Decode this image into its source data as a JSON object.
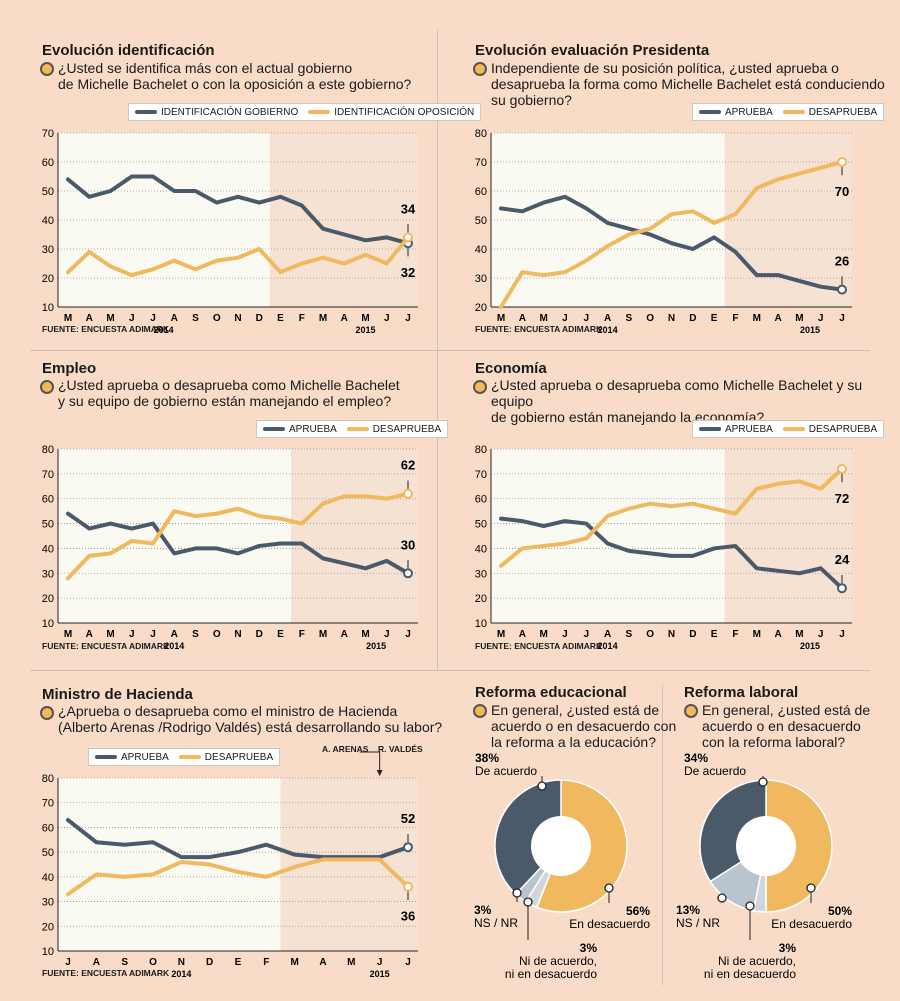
{
  "colors": {
    "background": "#f8dcc8",
    "aprueba": "#4a5a6a",
    "desaprueba": "#f0b960",
    "ns": "#b9c4ce",
    "ni": "#cfd6dc",
    "plot_white": "#fafaf2",
    "plot_shade": "#f6e2d3"
  },
  "source_label": "FUENTE: ENCUESTA ADIMARK",
  "years": {
    "y2014": "2014",
    "y2015": "2015"
  },
  "panels": {
    "identificacion": {
      "title": "Evolución identificación",
      "question": "¿Usted se identifica más con el actual gobierno\nde Michelle Bachelet o con la oposición a este gobierno?"
    },
    "presidenta": {
      "title": "Evolución evaluación Presidenta",
      "question": "Independiente de su posición política, ¿usted aprueba o\ndesaprueba la forma como Michelle Bachelet está conduciendo\nsu gobierno?"
    },
    "empleo": {
      "title": "Empleo",
      "question": "¿Usted aprueba o desaprueba como Michelle Bachelet\ny su equipo de gobierno están manejando el empleo?"
    },
    "economia": {
      "title": "Economía",
      "question": "¿Usted aprueba o desaprueba como Michelle Bachelet y su equipo\nde gobierno están manejando la economía?"
    },
    "hacienda": {
      "title": "Ministro de Hacienda",
      "question": "¿Aprueba o desaprueba como el ministro de Hacienda\n(Alberto Arenas /Rodrigo Valdés) está desarrollando su labor?",
      "arenas_label": "A. ARENAS",
      "valdes_label": "R. VALDÉS"
    },
    "educacional": {
      "title": "Reforma educacional",
      "question": "En general, ¿usted está de\nacuerdo o en desacuerdo con\nla reforma a la educación?"
    },
    "laboral": {
      "title": "Reforma laboral",
      "question": "En general, ¿usted está de\nacuerdo  o en desacuerdo\ncon la reforma laboral?"
    }
  },
  "chart_data": [
    {
      "id": "identificacion",
      "type": "line",
      "x": [
        "M",
        "A",
        "M",
        "J",
        "J",
        "A",
        "S",
        "O",
        "N",
        "D",
        "E",
        "F",
        "M",
        "A",
        "M",
        "J",
        "J"
      ],
      "shade_from": 10,
      "ylim": [
        10,
        70
      ],
      "yticks": [
        10,
        20,
        30,
        40,
        50,
        60,
        70
      ],
      "series": [
        {
          "name": "IDENTIFICACIÓN GOBIERNO",
          "color": "aprueba",
          "values": [
            54,
            48,
            50,
            55,
            55,
            50,
            50,
            46,
            48,
            46,
            48,
            45,
            37,
            35,
            33,
            34,
            32
          ],
          "end_label": "32",
          "label_pos": "below"
        },
        {
          "name": "IDENTIFICACIÓN OPOSICIÓN",
          "color": "desaprueba",
          "values": [
            22,
            29,
            24,
            21,
            23,
            26,
            23,
            26,
            27,
            30,
            22,
            25,
            27,
            25,
            28,
            25,
            34
          ],
          "end_label": "34",
          "label_pos": "above"
        }
      ]
    },
    {
      "id": "presidenta",
      "type": "line",
      "x": [
        "M",
        "A",
        "M",
        "J",
        "J",
        "A",
        "S",
        "O",
        "N",
        "D",
        "E",
        "F",
        "M",
        "A",
        "M",
        "J",
        "J"
      ],
      "shade_from": 11,
      "ylim": [
        20,
        80
      ],
      "yticks": [
        20,
        30,
        40,
        50,
        60,
        70,
        80
      ],
      "series": [
        {
          "name": "APRUEBA",
          "color": "aprueba",
          "values": [
            54,
            53,
            56,
            58,
            54,
            49,
            47,
            45,
            42,
            40,
            44,
            39,
            31,
            31,
            29,
            27,
            26
          ],
          "end_label": "26",
          "label_pos": "above"
        },
        {
          "name": "DESAPRUEBA",
          "color": "desaprueba",
          "values": [
            20,
            32,
            31,
            32,
            36,
            41,
            45,
            47,
            52,
            53,
            49,
            52,
            61,
            64,
            66,
            68,
            70
          ],
          "end_label": "70",
          "label_pos": "below"
        }
      ]
    },
    {
      "id": "empleo",
      "type": "line",
      "x": [
        "M",
        "A",
        "M",
        "J",
        "J",
        "A",
        "S",
        "O",
        "N",
        "D",
        "E",
        "F",
        "M",
        "A",
        "M",
        "J",
        "J"
      ],
      "shade_from": 11,
      "ylim": [
        10,
        80
      ],
      "yticks": [
        10,
        20,
        30,
        40,
        50,
        60,
        70,
        80
      ],
      "series": [
        {
          "name": "APRUEBA",
          "color": "aprueba",
          "values": [
            54,
            48,
            50,
            48,
            50,
            38,
            40,
            40,
            38,
            41,
            42,
            42,
            36,
            34,
            32,
            35,
            30
          ],
          "end_label": "30",
          "label_pos": "above"
        },
        {
          "name": "DESAPRUEBA",
          "color": "desaprueba",
          "values": [
            28,
            37,
            38,
            43,
            42,
            55,
            53,
            54,
            56,
            53,
            52,
            50,
            58,
            61,
            61,
            60,
            62
          ],
          "end_label": "62",
          "label_pos": "above"
        }
      ]
    },
    {
      "id": "economia",
      "type": "line",
      "x": [
        "M",
        "A",
        "M",
        "J",
        "J",
        "A",
        "S",
        "O",
        "N",
        "D",
        "E",
        "F",
        "M",
        "A",
        "M",
        "J",
        "J"
      ],
      "shade_from": 11,
      "ylim": [
        10,
        80
      ],
      "yticks": [
        10,
        20,
        30,
        40,
        50,
        60,
        70,
        80
      ],
      "series": [
        {
          "name": "APRUEBA",
          "color": "aprueba",
          "values": [
            52,
            51,
            49,
            51,
            50,
            42,
            39,
            38,
            37,
            37,
            40,
            41,
            32,
            31,
            30,
            32,
            24
          ],
          "end_label": "24",
          "label_pos": "above"
        },
        {
          "name": "DESAPRUEBA",
          "color": "desaprueba",
          "values": [
            33,
            40,
            41,
            42,
            44,
            53,
            56,
            58,
            57,
            58,
            56,
            54,
            64,
            66,
            67,
            64,
            72
          ],
          "end_label": "72",
          "label_pos": "below"
        }
      ]
    },
    {
      "id": "hacienda",
      "type": "line",
      "x": [
        "J",
        "A",
        "S",
        "O",
        "N",
        "D",
        "E",
        "F",
        "M",
        "A",
        "M",
        "J",
        "J"
      ],
      "shade_from": 8,
      "ylim": [
        10,
        80
      ],
      "yticks": [
        10,
        20,
        30,
        40,
        50,
        60,
        70,
        80
      ],
      "series": [
        {
          "name": "APRUEBA",
          "color": "aprueba",
          "values": [
            63,
            54,
            53,
            54,
            48,
            48,
            50,
            53,
            49,
            48,
            48,
            48,
            52
          ],
          "end_label": "52",
          "label_pos": "above"
        },
        {
          "name": "DESAPRUEBA",
          "color": "desaprueba",
          "values": [
            33,
            41,
            40,
            41,
            46,
            45,
            42,
            40,
            44,
            47,
            47,
            47,
            36
          ],
          "end_label": "36",
          "label_pos": "below"
        }
      ]
    },
    {
      "id": "educacional",
      "type": "pie",
      "slices": [
        {
          "name": "De acuerdo",
          "value": 38,
          "label": "38%",
          "color": "aprueba"
        },
        {
          "name": "En desacuerdo",
          "value": 56,
          "label": "56%",
          "color": "desaprueba"
        },
        {
          "name": "Ni de acuerdo, ni en desacuerdo",
          "value": 3,
          "label": "3%",
          "color": "ni"
        },
        {
          "name": "NS / NR",
          "value": 3,
          "label": "3%",
          "color": "ns"
        }
      ]
    },
    {
      "id": "laboral",
      "type": "pie",
      "slices": [
        {
          "name": "De acuerdo",
          "value": 34,
          "label": "34%",
          "color": "aprueba"
        },
        {
          "name": "En desacuerdo",
          "value": 50,
          "label": "50%",
          "color": "desaprueba"
        },
        {
          "name": "Ni de acuerdo, ni en desacuerdo",
          "value": 3,
          "label": "3%",
          "color": "ni"
        },
        {
          "name": "NS / NR",
          "value": 13,
          "label": "13%",
          "color": "ns"
        }
      ]
    }
  ]
}
